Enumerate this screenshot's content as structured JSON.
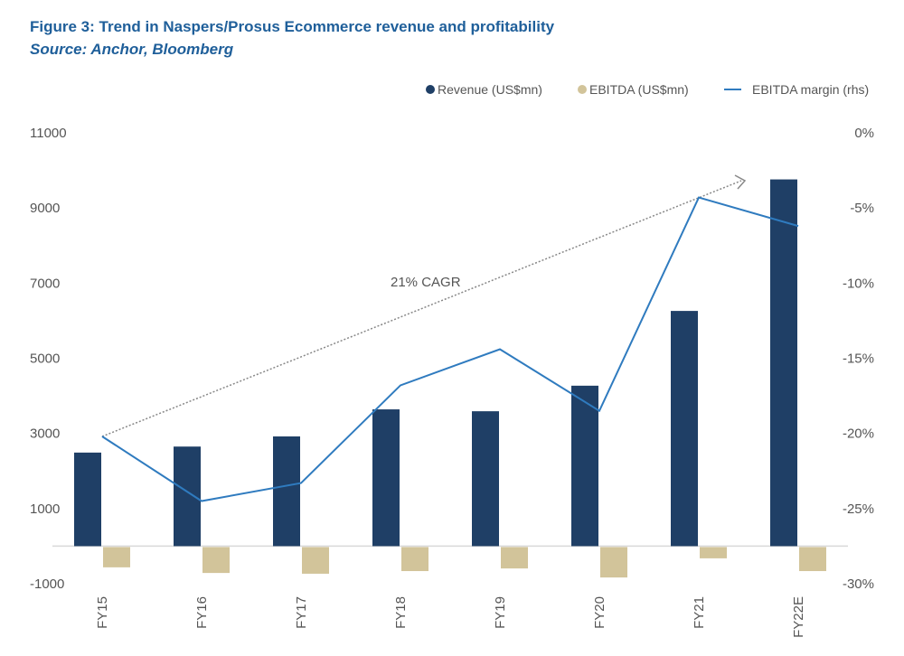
{
  "title": "Figure 3: Trend in Naspers/Prosus Ecommerce revenue and profitability",
  "subtitle": "Source: Anchor, Bloomberg",
  "chart_data": {
    "type": "bar",
    "categories": [
      "FY15",
      "FY16",
      "FY17",
      "FY18",
      "FY19",
      "FY20",
      "FY21",
      "FY22E"
    ],
    "series": [
      {
        "name": "Revenue (US$mn)",
        "type": "bar",
        "axis": "left",
        "color": "#1f3f66",
        "values": [
          2490,
          2650,
          2920,
          3640,
          3590,
          4270,
          6260,
          9760
        ]
      },
      {
        "name": "EBITDA (US$mn)",
        "type": "bar",
        "axis": "left",
        "color": "#d2c49a",
        "values": [
          -540,
          -690,
          -710,
          -640,
          -570,
          -810,
          -300,
          -640
        ]
      },
      {
        "name": "EBITDA margin (rhs)",
        "type": "line",
        "axis": "right",
        "color": "#2f7bbf",
        "values": [
          -20.2,
          -24.5,
          -23.3,
          -16.8,
          -14.4,
          -18.5,
          -4.3,
          -6.2
        ]
      }
    ],
    "ylim": [
      -1000,
      11000
    ],
    "yticks": [
      "11000",
      "9000",
      "7000",
      "5000",
      "3000",
      "1000",
      "-1000"
    ],
    "y2lim": [
      -30,
      0
    ],
    "y2ticks": [
      "0%",
      "-5%",
      "-10%",
      "-15%",
      "-20%",
      "-25%",
      "-30%"
    ],
    "annotation": "21% CAGR",
    "legend": "top-right",
    "grid": false
  }
}
